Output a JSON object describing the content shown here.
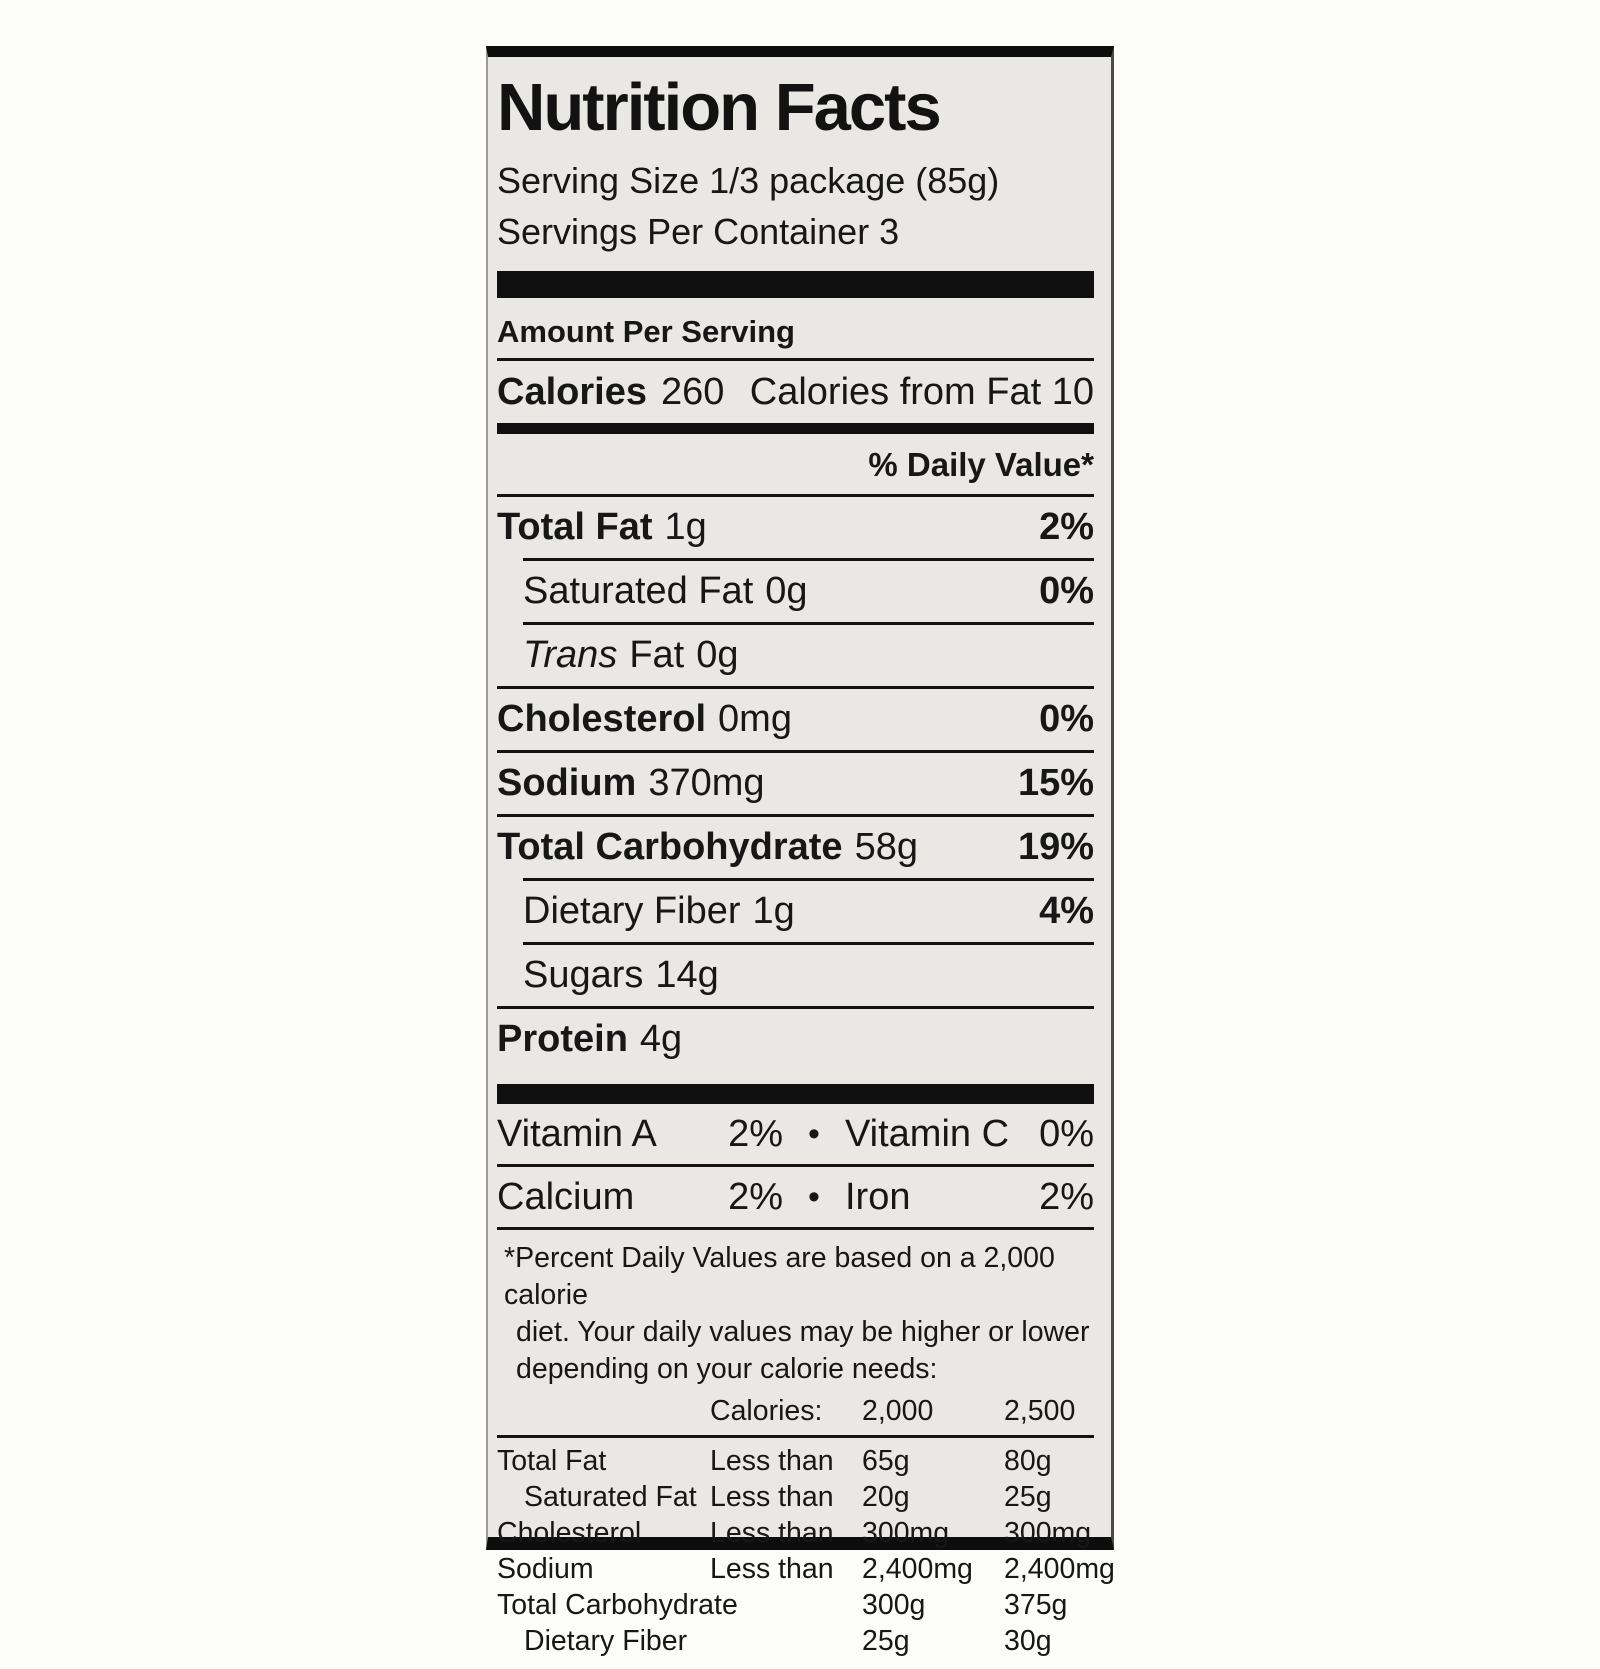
{
  "label": {
    "title": "Nutrition Facts",
    "serving_size": "Serving Size 1/3 package (85g)",
    "servings_per_container": "Servings Per Container 3",
    "amount_per_serving": "Amount Per Serving",
    "calories_word": "Calories",
    "calories_value": "260",
    "calories_from_fat": "Calories from Fat 10",
    "daily_value_header": "% Daily Value*",
    "bullet": "•",
    "nutrients": [
      {
        "name": "Total Fat",
        "amount": "1g",
        "dv": "2%"
      },
      {
        "name": "Saturated Fat",
        "amount": "0g",
        "dv": "0%"
      },
      {
        "name_italic": "Trans",
        "name_rest": "Fat",
        "amount": "0g",
        "dv": ""
      },
      {
        "name": "Cholesterol",
        "amount": "0mg",
        "dv": "0%"
      },
      {
        "name": "Sodium",
        "amount": "370mg",
        "dv": "15%"
      },
      {
        "name": "Total Carbohydrate",
        "amount": "58g",
        "dv": "19%"
      },
      {
        "name": "Dietary Fiber",
        "amount": "1g",
        "dv": "4%"
      },
      {
        "name": "Sugars",
        "amount": "14g",
        "dv": ""
      },
      {
        "name": "Protein",
        "amount": "4g",
        "dv": ""
      }
    ],
    "vitamin_rows": [
      {
        "left_name": "Vitamin A",
        "left_value": "2%",
        "right_name": "Vitamin C",
        "right_value": "0%"
      },
      {
        "left_name": "Calcium",
        "left_value": "2%",
        "right_name": "Iron",
        "right_value": "2%"
      }
    ],
    "footnote_lines": [
      "*Percent Daily Values are based on a 2,000 calorie",
      "diet. Your daily values may be higher or lower",
      "depending on your calorie needs:"
    ],
    "ref_table": {
      "header_label": "Calories:",
      "header_col1": "2,000",
      "header_col2": "2,500",
      "rows": [
        {
          "name": "Total Fat",
          "qualifier": "Less than",
          "v1": "65g",
          "v2": "80g"
        },
        {
          "name": "Saturated Fat",
          "qualifier": "Less than",
          "v1": "20g",
          "v2": "25g"
        },
        {
          "name": "Cholesterol",
          "qualifier": "Less than",
          "v1": "300mg",
          "v2": "300mg"
        },
        {
          "name": "Sodium",
          "qualifier": "Less than",
          "v1": "2,400mg",
          "v2": "2,400mg"
        },
        {
          "name": "Total Carbohydrate",
          "qualifier": "",
          "v1": "300g",
          "v2": "375g"
        },
        {
          "name": "Dietary Fiber",
          "qualifier": "",
          "v1": "25g",
          "v2": "30g"
        }
      ]
    },
    "colors": {
      "label_bg": "#e9e8e5",
      "text": "#171717",
      "bar": "#0f0f0f",
      "page_bg": "#fcfcfb"
    }
  }
}
